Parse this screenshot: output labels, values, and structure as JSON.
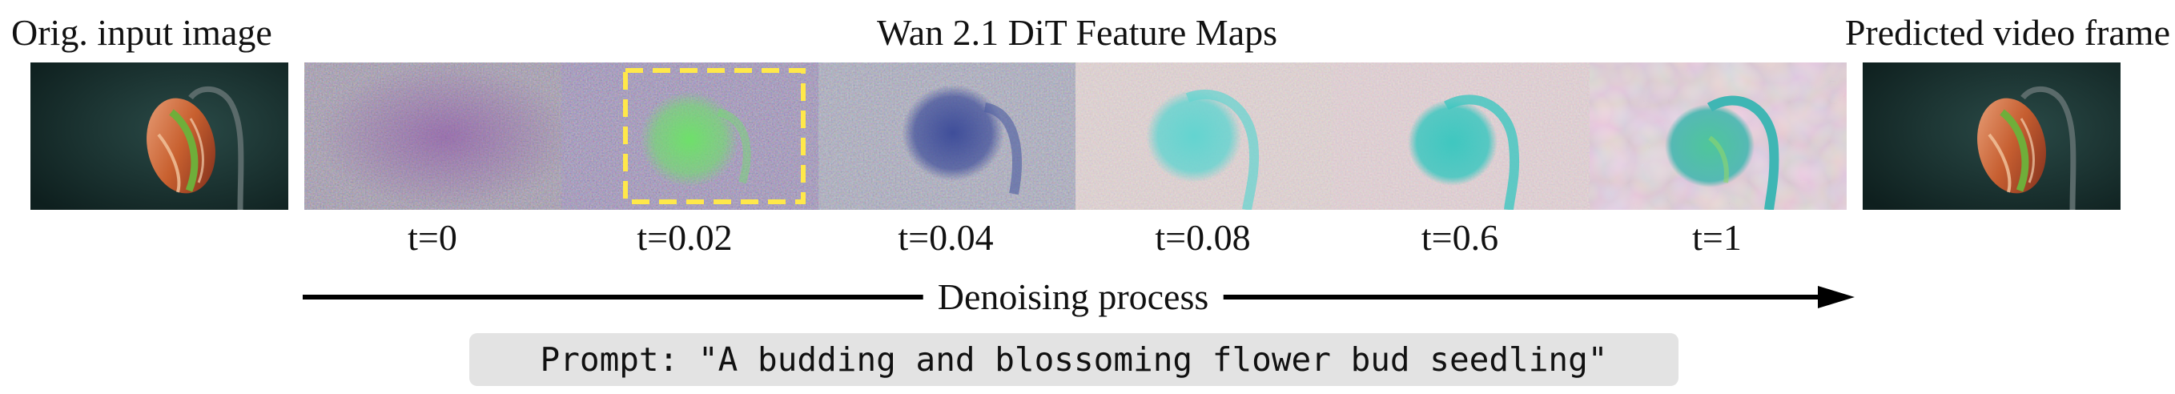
{
  "labels": {
    "input": "Orig. input image",
    "center": "Wan 2.1 DiT Feature Maps",
    "output": "Predicted video frame"
  },
  "timesteps": [
    "t=0",
    "t=0.02",
    "t=0.04",
    "t=0.08",
    "t=0.6",
    "t=1"
  ],
  "process_label": "Denoising process",
  "prompt": "Prompt: \"A budding and blossoming flower bud seedling\"",
  "colors": {
    "highlight_box": "#ffe84a",
    "image_background": "#17302e",
    "arrow": "#000000"
  }
}
